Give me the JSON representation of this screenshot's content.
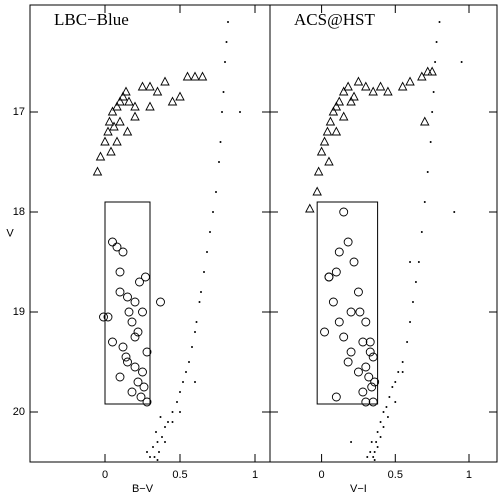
{
  "chart_data": [
    {
      "type": "scatter",
      "title": "LBC−Blue",
      "x_label": "B−V",
      "y_label": "V",
      "xlim": [
        -0.5,
        1.1
      ],
      "ylim": [
        20.5,
        15.93
      ],
      "xticks": [
        0,
        0.5,
        1
      ],
      "yticks": [
        17,
        18,
        19,
        20
      ],
      "box": {
        "x": [
          0,
          0.3
        ],
        "y": [
          17.9,
          19.92
        ]
      },
      "series": [
        {
          "marker": "triangle",
          "color": "#000000",
          "x": [
            -0.05,
            -0.03,
            0,
            0.02,
            0.03,
            0.05,
            0.06,
            0.08,
            0.1,
            0.12,
            0.14,
            0.16,
            0.2,
            0.25,
            0.3,
            0.35,
            0.4,
            0.45,
            0.5,
            0.55,
            0.6,
            0.65,
            0.1,
            0.15,
            0.2,
            0.3,
            0.08,
            0.04
          ],
          "values": [
            17.6,
            17.45,
            17.3,
            17.2,
            17.1,
            17.0,
            17.15,
            16.95,
            16.9,
            16.85,
            16.8,
            16.9,
            16.95,
            16.75,
            16.75,
            16.8,
            16.7,
            16.9,
            16.85,
            16.65,
            16.65,
            16.65,
            17.1,
            17.2,
            17.05,
            16.95,
            17.3,
            17.4
          ]
        },
        {
          "marker": "circle",
          "color": "#000000",
          "x": [
            0.05,
            0.08,
            0.12,
            0.02,
            0.1,
            0.15,
            0.2,
            0.25,
            0.18,
            0.22,
            0.05,
            0.12,
            0.28,
            0.15,
            0.2,
            0.25,
            0.1,
            0.22,
            0.26,
            0.18,
            0.24,
            0.14,
            0.28,
            0.2,
            0.23,
            -0.01,
            0.37,
            0.1,
            0.16,
            0.27
          ],
          "values": [
            18.3,
            18.35,
            18.4,
            19.05,
            18.8,
            18.85,
            18.9,
            19.0,
            19.1,
            19.2,
            19.3,
            19.35,
            19.4,
            19.5,
            19.55,
            19.6,
            19.65,
            19.7,
            19.75,
            19.8,
            19.85,
            19.45,
            19.9,
            19.25,
            18.7,
            19.05,
            18.9,
            18.6,
            19.0,
            18.65
          ]
        },
        {
          "marker": "dot",
          "color": "#000000",
          "x": [
            0.82,
            0.81,
            0.8,
            0.79,
            0.78,
            0.77,
            0.76,
            0.74,
            0.72,
            0.7,
            0.68,
            0.66,
            0.64,
            0.63,
            0.61,
            0.6,
            0.58,
            0.56,
            0.54,
            0.52,
            0.5,
            0.48,
            0.45,
            0.42,
            0.4,
            0.38,
            0.35,
            0.36,
            0.33,
            0.34,
            0.32,
            0.37,
            0.3,
            0.28,
            0.35,
            0.4,
            0.45,
            0.5,
            0.6,
            0.9
          ],
          "values": [
            16.1,
            16.3,
            16.5,
            16.8,
            17.0,
            17.3,
            17.5,
            17.8,
            18.0,
            18.2,
            18.4,
            18.6,
            18.8,
            18.9,
            19.1,
            19.2,
            19.35,
            19.5,
            19.6,
            19.7,
            19.8,
            19.9,
            20.0,
            20.1,
            20.15,
            20.25,
            20.3,
            20.4,
            20.45,
            20.2,
            20.35,
            20.05,
            20.45,
            20.4,
            20.48,
            20.3,
            20.1,
            20.0,
            19.7,
            17.0
          ]
        }
      ]
    },
    {
      "type": "scatter",
      "title": "ACS@HST",
      "x_label": "V−I",
      "xlim": [
        -0.35,
        1.19
      ],
      "ylim": [
        20.5,
        15.93
      ],
      "xticks": [
        0,
        0.5,
        1
      ],
      "yticks": [
        17,
        18,
        19,
        20
      ],
      "box": {
        "x": [
          -0.03,
          0.38
        ],
        "y": [
          17.9,
          19.92
        ]
      },
      "series": [
        {
          "marker": "triangle",
          "color": "#000000",
          "x": [
            -0.08,
            -0.03,
            -0.02,
            0,
            0.02,
            0.04,
            0.06,
            0.08,
            0.1,
            0.12,
            0.15,
            0.18,
            0.2,
            0.22,
            0.25,
            0.3,
            0.35,
            0.4,
            0.45,
            0.55,
            0.6,
            0.68,
            0.72,
            0.75,
            0.7,
            0.05,
            0.1,
            0.15
          ],
          "values": [
            17.97,
            17.8,
            17.6,
            17.4,
            17.3,
            17.2,
            17.1,
            17.0,
            16.95,
            16.9,
            16.8,
            16.75,
            16.9,
            16.85,
            16.7,
            16.75,
            16.8,
            16.75,
            16.8,
            16.75,
            16.7,
            16.65,
            16.6,
            16.6,
            17.1,
            17.5,
            17.2,
            17.05
          ]
        },
        {
          "marker": "circle",
          "color": "#000000",
          "x": [
            0.15,
            0.18,
            0.12,
            0.22,
            0.1,
            0.05,
            0.08,
            0.2,
            0.25,
            0.3,
            0.02,
            0.15,
            0.28,
            0.33,
            0.35,
            0.3,
            0.25,
            0.32,
            0.36,
            0.34,
            0.28,
            0.1,
            0.2,
            0.3,
            0.35,
            0.18,
            0.05,
            0.12,
            0.26,
            0.33
          ],
          "values": [
            18.0,
            18.3,
            18.4,
            18.5,
            18.6,
            18.65,
            18.9,
            19.0,
            18.8,
            19.1,
            19.2,
            19.25,
            19.3,
            19.4,
            19.45,
            19.55,
            19.6,
            19.65,
            19.7,
            19.75,
            19.8,
            19.85,
            19.4,
            19.9,
            19.9,
            19.5,
            18.65,
            19.1,
            19.0,
            19.3
          ]
        },
        {
          "marker": "dot",
          "color": "#000000",
          "x": [
            0.8,
            0.78,
            0.77,
            0.76,
            0.75,
            0.74,
            0.72,
            0.7,
            0.68,
            0.66,
            0.64,
            0.62,
            0.6,
            0.58,
            0.55,
            0.52,
            0.5,
            0.48,
            0.46,
            0.44,
            0.42,
            0.4,
            0.38,
            0.37,
            0.36,
            0.35,
            0.34,
            0.36,
            0.38,
            0.4,
            0.42,
            0.45,
            0.5,
            0.55,
            0.6,
            0.33,
            0.31,
            0.95,
            0.9,
            0.2
          ],
          "values": [
            16.1,
            16.3,
            16.5,
            16.8,
            17.0,
            17.3,
            17.6,
            17.9,
            18.2,
            18.5,
            18.7,
            18.9,
            19.1,
            19.3,
            19.5,
            19.6,
            19.7,
            19.75,
            19.85,
            19.95,
            20.0,
            20.1,
            20.2,
            20.3,
            20.4,
            20.45,
            20.3,
            20.48,
            20.35,
            20.25,
            20.15,
            20.05,
            19.9,
            19.6,
            18.5,
            20.4,
            20.45,
            16.5,
            18.0,
            20.3
          ]
        }
      ]
    }
  ]
}
